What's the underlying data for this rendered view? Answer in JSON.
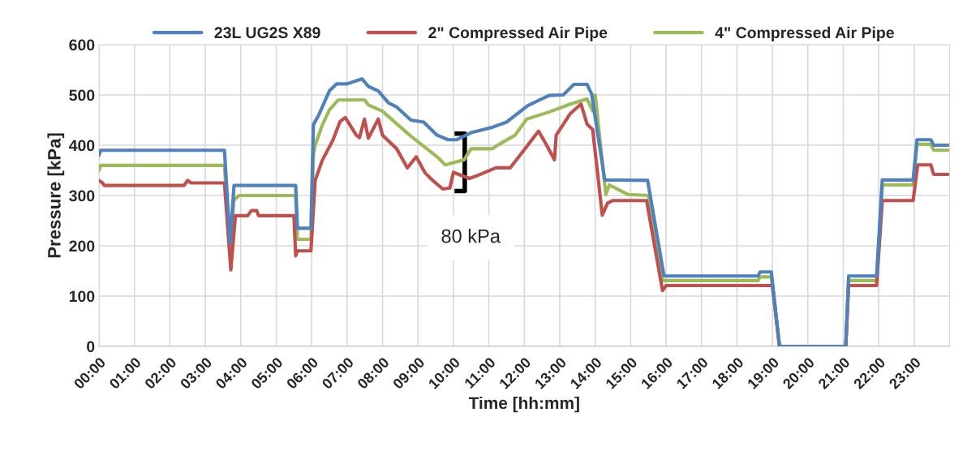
{
  "chart_data": {
    "type": "line",
    "xlabel": "Time [hh:mm]",
    "ylabel": "Pressure [kPa]",
    "xlim": [
      0,
      24
    ],
    "ylim": [
      0,
      600
    ],
    "xticks": [
      {
        "value": 0,
        "label": "00:00"
      },
      {
        "value": 1,
        "label": "01:00"
      },
      {
        "value": 2,
        "label": "02:00"
      },
      {
        "value": 3,
        "label": "03:00"
      },
      {
        "value": 4,
        "label": "04:00"
      },
      {
        "value": 5,
        "label": "05:00"
      },
      {
        "value": 6,
        "label": "06:00"
      },
      {
        "value": 7,
        "label": "07:00"
      },
      {
        "value": 8,
        "label": "08:00"
      },
      {
        "value": 9,
        "label": "09:00"
      },
      {
        "value": 10,
        "label": "10:00"
      },
      {
        "value": 11,
        "label": "11:00"
      },
      {
        "value": 12,
        "label": "12:00"
      },
      {
        "value": 13,
        "label": "13:00"
      },
      {
        "value": 14,
        "label": "14:00"
      },
      {
        "value": 15,
        "label": "15:00"
      },
      {
        "value": 16,
        "label": "16:00"
      },
      {
        "value": 17,
        "label": "17:00"
      },
      {
        "value": 18,
        "label": "18:00"
      },
      {
        "value": 19,
        "label": "19:00"
      },
      {
        "value": 20,
        "label": "20:00"
      },
      {
        "value": 21,
        "label": "21:00"
      },
      {
        "value": 22,
        "label": "22:00"
      },
      {
        "value": 23,
        "label": "23:00"
      }
    ],
    "yticks": [
      0,
      100,
      200,
      300,
      400,
      500,
      600
    ],
    "grid": true,
    "legend": "top",
    "line_style": "solid",
    "marker": "none",
    "annotations": [
      "80 kPa"
    ],
    "series": [
      {
        "name": "23L UG2S X89",
        "color": "#4f81bd",
        "x": [
          0,
          0.05,
          0.1,
          3.54,
          3.7,
          3.81,
          5.55,
          5.6,
          5.98,
          6.05,
          6.2,
          6.5,
          6.7,
          7.0,
          7.42,
          7.6,
          7.88,
          8.17,
          8.4,
          8.8,
          9.16,
          9.54,
          9.85,
          10.1,
          10.5,
          11.07,
          11.5,
          12.1,
          12.7,
          13.1,
          13.4,
          13.77,
          13.9,
          14.27,
          15.48,
          15.94,
          18.6,
          18.65,
          18.97,
          19.2,
          21.07,
          21.15,
          21.94,
          22.1,
          22.97,
          23.08,
          23.47,
          23.55,
          23.95
        ],
        "values": [
          380,
          390,
          390,
          390,
          205,
          320,
          320,
          235,
          235,
          441,
          460,
          508,
          522,
          522,
          532,
          517,
          508,
          484,
          476,
          450,
          446,
          420,
          411,
          411,
          425,
          435,
          446,
          479,
          499,
          500,
          521,
          521,
          502,
          331,
          330,
          140,
          140,
          148,
          148,
          0,
          0,
          140,
          140,
          331,
          331,
          411,
          411,
          400,
          400
        ]
      },
      {
        "name": "2\" Compressed Air Pipe",
        "color": "#c0504d",
        "x": [
          0,
          0.1,
          0.15,
          2.4,
          2.5,
          2.6,
          3.54,
          3.72,
          3.85,
          4.2,
          4.3,
          4.45,
          4.5,
          5.5,
          5.55,
          5.6,
          5.98,
          6.1,
          6.3,
          6.6,
          6.8,
          6.95,
          7.26,
          7.35,
          7.49,
          7.6,
          7.88,
          8.0,
          8.4,
          8.7,
          8.95,
          9.2,
          9.4,
          9.7,
          9.9,
          10.0,
          10.45,
          10.65,
          11.2,
          11.6,
          11.9,
          12.4,
          12.6,
          12.85,
          12.9,
          13.3,
          13.6,
          13.77,
          13.93,
          14.2,
          14.35,
          14.5,
          15.45,
          15.9,
          16.0,
          19.0,
          19.2,
          21.07,
          21.15,
          21.94,
          22.1,
          22.97,
          23.1,
          23.47,
          23.55,
          23.95
        ],
        "values": [
          330,
          325,
          320,
          320,
          330,
          325,
          325,
          152,
          260,
          260,
          270,
          270,
          260,
          260,
          180,
          190,
          190,
          330,
          370,
          410,
          447,
          455,
          420,
          415,
          452,
          414,
          452,
          420,
          393,
          355,
          377,
          345,
          331,
          313,
          315,
          346,
          334,
          339,
          355,
          355,
          382,
          428,
          404,
          371,
          420,
          463,
          482,
          442,
          431,
          261,
          285,
          290,
          290,
          111,
          121,
          121,
          0,
          0,
          121,
          121,
          290,
          290,
          361,
          361,
          342,
          342
        ]
      },
      {
        "name": "4\" Compressed Air Pipe",
        "color": "#9bbb59",
        "x": [
          0,
          0.05,
          0.1,
          3.54,
          3.72,
          3.8,
          3.95,
          5.55,
          5.6,
          5.98,
          6.05,
          6.1,
          6.3,
          6.5,
          6.75,
          7.5,
          7.6,
          7.99,
          8.8,
          9.54,
          9.77,
          10.3,
          10.5,
          11.1,
          11.2,
          11.74,
          12.07,
          12.7,
          13.3,
          13.77,
          13.93,
          14.0,
          14.3,
          14.4,
          14.7,
          14.93,
          15.5,
          15.9,
          18.6,
          18.65,
          18.97,
          19.2,
          21.07,
          21.15,
          21.94,
          22.1,
          22.97,
          23.08,
          23.47,
          23.55,
          23.95
        ],
        "values": [
          350,
          360,
          360,
          360,
          161,
          290,
          300,
          300,
          213,
          213,
          380,
          400,
          440,
          470,
          490,
          490,
          480,
          468,
          418,
          377,
          361,
          371,
          393,
          393,
          398,
          420,
          452,
          466,
          482,
          492,
          468,
          500,
          302,
          321,
          310,
          302,
          300,
          131,
          131,
          138,
          138,
          0,
          0,
          131,
          131,
          321,
          321,
          402,
          402,
          390,
          390
        ]
      }
    ]
  }
}
